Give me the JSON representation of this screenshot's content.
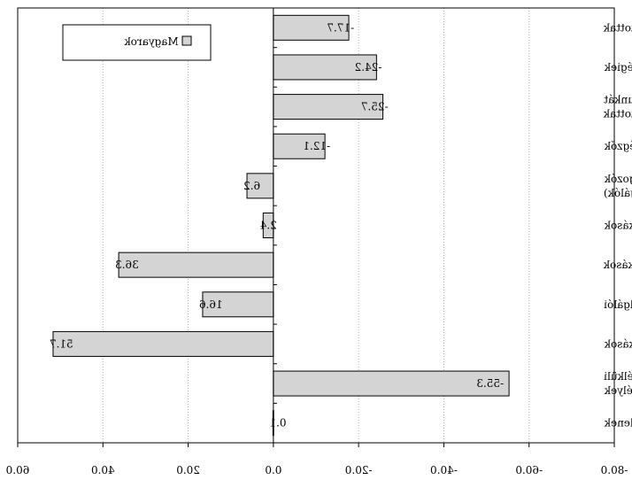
{
  "chart_data": {
    "type": "bar",
    "orientation": "horizontal",
    "x_axis_reversed": true,
    "mirrored_rendering": true,
    "categories": [
      "Vezető és irányító alkalmazottak",
      "Értelmiségiek",
      "Középszintű szellemi munkát végző alkalmazottak",
      "Rutinjellegű irodai munkát végzők",
      "Szolgáltatásokban és kereskedelemben dolgozók (elárusítók, kiszolgálók)",
      "Ipari szakmunkások",
      "Agráriumban dolgozó szakmunkások",
      "Gépi berendezések kiszolgálói",
      "Segédmunkások",
      "Besorolás nélküli személyek",
      "Ismeretlenek"
    ],
    "category_lines": [
      [
        "Vezető és irányító alkalmazottak"
      ],
      [
        "Értelmiségiek"
      ],
      [
        "Középszintű szellemi munkát",
        "végző alkalmazottak"
      ],
      [
        "Rutinjellegű irodai munkát végzők"
      ],
      [
        "Szolgáltatásokban és kereskedelemben dolgozók",
        "(elárusítók, kiszolgálók)"
      ],
      [
        "Ipari szakmunkások"
      ],
      [
        "Agráriumban dolgozó szakmunkások"
      ],
      [
        "Gépi berendezések kiszolgálói"
      ],
      [
        "Segédmunkások"
      ],
      [
        "Besorolás nélküli",
        "személyek"
      ],
      [
        "Ismeretlenek"
      ]
    ],
    "series": [
      {
        "name": "Magyarok",
        "values": [
          -17.7,
          -24.2,
          -25.7,
          -12.1,
          6.2,
          2.4,
          36.3,
          16.6,
          51.7,
          -55.3,
          0.1
        ],
        "labels": [
          "-17.7",
          "-24.2",
          "-25.7",
          "-12.1",
          "6.2",
          "2.4",
          "36.3",
          "16.6",
          "51.7",
          "-55.3",
          "0.1"
        ]
      }
    ],
    "xlim": [
      -80,
      60
    ],
    "xticks": [
      -80,
      -60,
      -40,
      -20,
      0,
      20,
      40,
      60
    ],
    "xtick_labels": [
      "-80.0",
      "-60.0",
      "-40.0",
      "-20.0",
      "0.0",
      "20.0",
      "40.0",
      "60.0"
    ],
    "grid": true,
    "legend_position": "top-left",
    "colors": {
      "bar_fill": "#d4d4d4",
      "bar_stroke": "#000000",
      "grid": "#b0b0b0"
    }
  }
}
